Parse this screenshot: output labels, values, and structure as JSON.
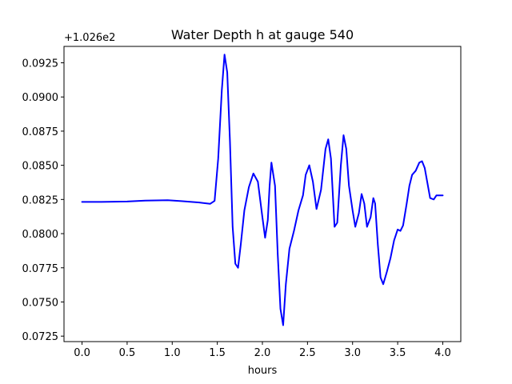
{
  "chart_data": {
    "type": "line",
    "title": "Water Depth h at gauge 540",
    "xlabel": "hours",
    "ylabel": "",
    "offset_label": "+1.026e2",
    "xlim": [
      -0.2,
      4.2
    ],
    "ylim": [
      0.0721,
      0.0937
    ],
    "x_ticks": [
      0.0,
      0.5,
      1.0,
      1.5,
      2.0,
      2.5,
      3.0,
      3.5,
      4.0
    ],
    "x_tick_labels": [
      "0.0",
      "0.5",
      "1.0",
      "1.5",
      "2.0",
      "2.5",
      "3.0",
      "3.5",
      "4.0"
    ],
    "y_ticks": [
      0.0725,
      0.075,
      0.0775,
      0.08,
      0.0825,
      0.085,
      0.0875,
      0.09,
      0.0925
    ],
    "y_tick_labels": [
      "0.0725",
      "0.0750",
      "0.0775",
      "0.0800",
      "0.0825",
      "0.0850",
      "0.0875",
      "0.0900",
      "0.0925"
    ],
    "grid": false,
    "series": [
      {
        "color": "#0000ff",
        "x": [
          0.0,
          0.2,
          0.5,
          0.7,
          0.95,
          1.1,
          1.3,
          1.42,
          1.47,
          1.51,
          1.55,
          1.58,
          1.61,
          1.64,
          1.67,
          1.7,
          1.73,
          1.76,
          1.8,
          1.85,
          1.9,
          1.95,
          2.0,
          2.03,
          2.06,
          2.08,
          2.1,
          2.14,
          2.17,
          2.2,
          2.23,
          2.26,
          2.3,
          2.35,
          2.4,
          2.45,
          2.48,
          2.52,
          2.56,
          2.6,
          2.65,
          2.7,
          2.73,
          2.76,
          2.8,
          2.83,
          2.87,
          2.9,
          2.93,
          2.96,
          3.0,
          3.03,
          3.07,
          3.1,
          3.13,
          3.16,
          3.2,
          3.23,
          3.25,
          3.28,
          3.31,
          3.34,
          3.38,
          3.42,
          3.46,
          3.5,
          3.53,
          3.56,
          3.6,
          3.63,
          3.66,
          3.7,
          3.74,
          3.77,
          3.8,
          3.83,
          3.86,
          3.9,
          3.93,
          3.96,
          4.0
        ],
        "y": [
          0.08232,
          0.08232,
          0.08235,
          0.08242,
          0.08245,
          0.08238,
          0.08228,
          0.08218,
          0.0824,
          0.0855,
          0.0905,
          0.0931,
          0.0918,
          0.0868,
          0.0805,
          0.0778,
          0.0775,
          0.0792,
          0.0817,
          0.0834,
          0.0844,
          0.0838,
          0.0812,
          0.0797,
          0.081,
          0.0835,
          0.0852,
          0.0835,
          0.0785,
          0.0745,
          0.0733,
          0.0763,
          0.0789,
          0.0802,
          0.0817,
          0.0828,
          0.0843,
          0.085,
          0.0838,
          0.0818,
          0.0832,
          0.0862,
          0.0869,
          0.0855,
          0.0805,
          0.0808,
          0.085,
          0.0872,
          0.0862,
          0.0835,
          0.0817,
          0.0805,
          0.0815,
          0.0829,
          0.0822,
          0.0805,
          0.0812,
          0.0826,
          0.0822,
          0.0792,
          0.0768,
          0.0763,
          0.0772,
          0.0782,
          0.0795,
          0.0803,
          0.0802,
          0.0806,
          0.0822,
          0.0835,
          0.0843,
          0.0846,
          0.0852,
          0.0853,
          0.0848,
          0.0837,
          0.0826,
          0.0825,
          0.0828,
          0.0828,
          0.0828
        ]
      }
    ]
  }
}
